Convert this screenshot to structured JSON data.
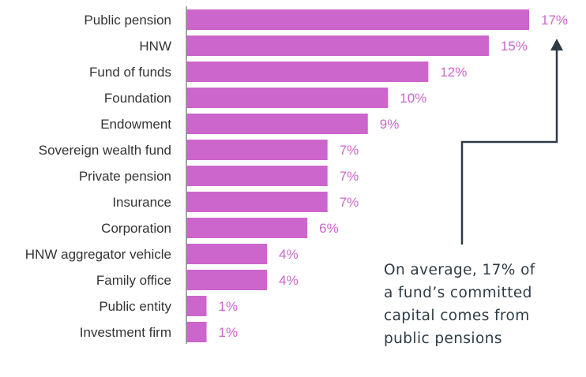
{
  "chart_data": {
    "type": "bar",
    "orientation": "horizontal",
    "categories": [
      "Public pension",
      "HNW",
      "Fund of funds",
      "Foundation",
      "Endowment",
      "Sovereign wealth fund",
      "Private pension",
      "Insurance",
      "Corporation",
      "HNW aggregator vehicle",
      "Family office",
      "Public entity",
      "Investment firm"
    ],
    "values": [
      17,
      15,
      12,
      10,
      9,
      7,
      7,
      7,
      6,
      4,
      4,
      1,
      1
    ],
    "value_labels": [
      "17%",
      "15%",
      "12%",
      "10%",
      "9%",
      "7%",
      "7%",
      "7%",
      "6%",
      "4%",
      "4%",
      "1%",
      "1%"
    ],
    "xlim": [
      0,
      17
    ],
    "title": "",
    "xlabel": "",
    "ylabel": "",
    "grid": false,
    "bar_color": "#cc66cc",
    "label_color": "#cc66cc",
    "arrow_color": "#2f3b44"
  },
  "annotation": {
    "text": "On average, 17% of\na fund’s committed\ncapital comes from\npublic pensions"
  }
}
